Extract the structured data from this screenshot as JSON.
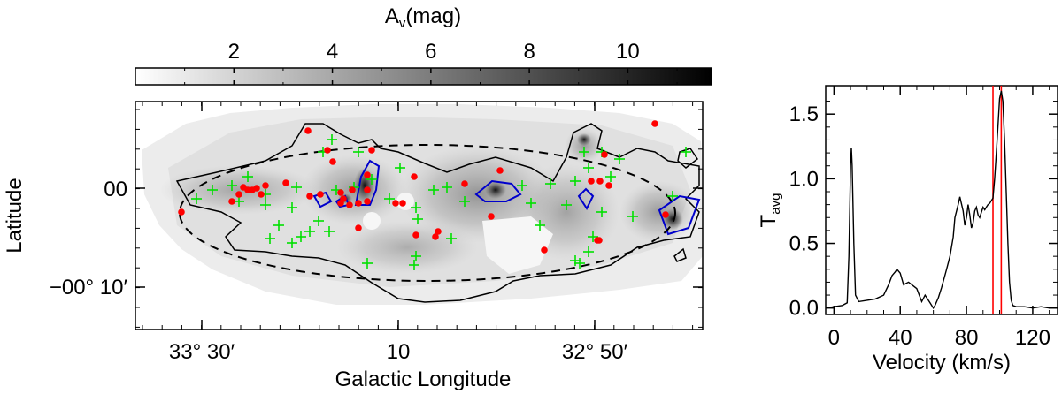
{
  "colorbar": {
    "label_main": "A",
    "label_sub": "v",
    "label_unit": "(mag)",
    "ticks": [
      "2",
      "4",
      "6",
      "8",
      "10"
    ],
    "tick_values": [
      2,
      4,
      6,
      8,
      10
    ],
    "range": [
      0.0,
      11.7
    ],
    "colors": [
      "#ffffff",
      "#000000"
    ]
  },
  "map": {
    "xlabel": "Galactic Longitude",
    "ylabel": "Latitude",
    "xticks": [
      "33° 30′",
      "10",
      "32° 50′"
    ],
    "yticks": [
      "00",
      "−00° 10′"
    ],
    "colors": {
      "red_markers": "#ff0000",
      "green_markers": "#00e000",
      "blue_contours": "#0000cc",
      "black_contours": "#000000"
    }
  },
  "spectrum": {
    "xlabel": "Velocity (km/s)",
    "ylabel_main": "T",
    "ylabel_sub": "avg",
    "xticks": [
      "0",
      "40",
      "80",
      "120"
    ],
    "yticks": [
      "0.0",
      "0.5",
      "1.0",
      "1.5"
    ]
  },
  "chart_data": [
    {
      "type": "heatmap",
      "title": "",
      "xlabel": "Galactic Longitude",
      "ylabel": "Latitude",
      "colorbar_label": "Av (mag)",
      "colorbar_range": [
        0.0,
        11.7
      ],
      "note_scale": "grayscale",
      "red_points_count": 38,
      "green_crosses_count": 52
    },
    {
      "type": "line",
      "xlabel": "Velocity (km/s)",
      "ylabel": "Tavg",
      "xlim": [
        -5,
        135
      ],
      "ylim": [
        -0.05,
        1.72
      ],
      "vertical_lines": [
        96,
        101
      ],
      "series": [
        {
          "x": [
            -5,
            0,
            5,
            8,
            9,
            10,
            10.5,
            11,
            12,
            13,
            15,
            20,
            25,
            30,
            33,
            35,
            37,
            38,
            40,
            42,
            45,
            48,
            50,
            53,
            55,
            58,
            60,
            61,
            63,
            65,
            68,
            70,
            72,
            73,
            75,
            76,
            78,
            79,
            80,
            81,
            82,
            83,
            84,
            85,
            86,
            87,
            88,
            89,
            90,
            91,
            92,
            93,
            94,
            95,
            96,
            97,
            98,
            99,
            100,
            101,
            102,
            103,
            104,
            105,
            106,
            107,
            108,
            110,
            115,
            120,
            125,
            130,
            135
          ],
          "y": [
            0.0,
            0.01,
            0.02,
            0.04,
            0.4,
            1.1,
            1.24,
            1.1,
            0.5,
            0.1,
            0.05,
            0.06,
            0.07,
            0.1,
            0.18,
            0.25,
            0.28,
            0.3,
            0.27,
            0.18,
            0.2,
            0.17,
            0.15,
            0.05,
            0.1,
            0.04,
            0.0,
            0.02,
            0.08,
            0.16,
            0.3,
            0.4,
            0.55,
            0.7,
            0.8,
            0.86,
            0.75,
            0.64,
            0.7,
            0.8,
            0.72,
            0.62,
            0.66,
            0.75,
            0.78,
            0.72,
            0.7,
            0.74,
            0.78,
            0.76,
            0.78,
            0.8,
            0.81,
            0.83,
            0.85,
            1.0,
            1.2,
            1.4,
            1.62,
            1.68,
            1.6,
            1.3,
            0.9,
            0.5,
            0.2,
            0.06,
            0.02,
            0.01,
            0.01,
            0.0,
            0.01,
            0.0,
            0.0
          ]
        }
      ]
    }
  ]
}
